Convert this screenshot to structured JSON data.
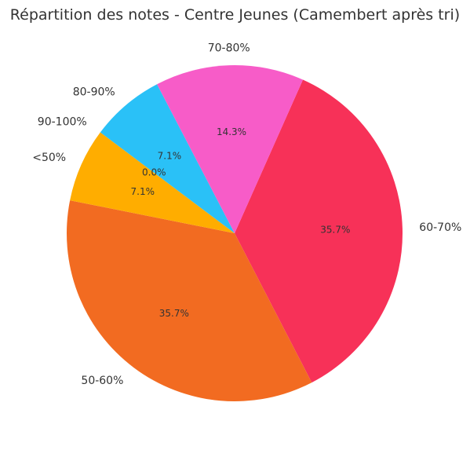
{
  "chart_data": {
    "type": "pie",
    "title": "Répartition des notes - Centre Jeunes (Camembert après tri)",
    "slices": [
      {
        "label": "60-70%",
        "value": 35.7,
        "pct_label": "35.7%",
        "color": "#f73158"
      },
      {
        "label": "50-60%",
        "value": 35.7,
        "pct_label": "35.7%",
        "color": "#f26b21"
      },
      {
        "label": "<50%",
        "value": 7.1,
        "pct_label": "7.1%",
        "color": "#ffad00"
      },
      {
        "label": "90-100%",
        "value": 0.0,
        "pct_label": "0.0%",
        "color": "#2ac1f7"
      },
      {
        "label": "80-90%",
        "value": 7.1,
        "pct_label": "7.1%",
        "color": "#2ac1f7"
      },
      {
        "label": "70-80%",
        "value": 14.3,
        "pct_label": "14.3%",
        "color": "#f75cc8"
      }
    ],
    "start_angle_deg": 66,
    "direction": "clockwise",
    "legend": "none"
  }
}
